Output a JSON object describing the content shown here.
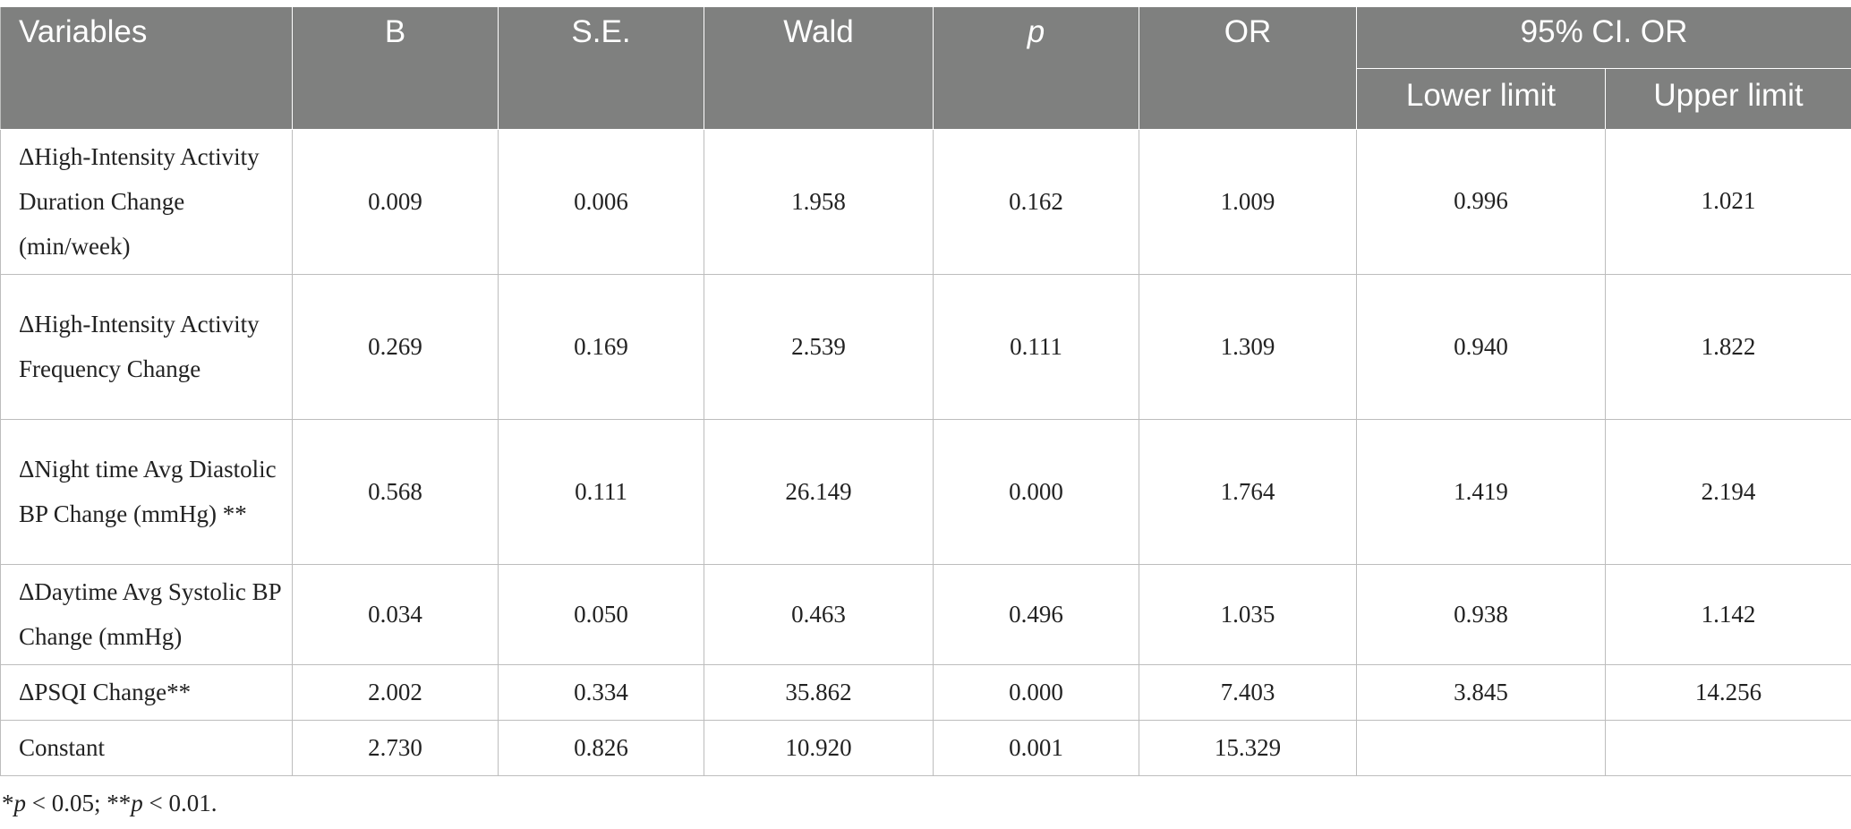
{
  "table": {
    "headers": {
      "variables": "Variables",
      "b": "B",
      "se": "S.E.",
      "wald": "Wald",
      "p": "p",
      "or": "OR",
      "ci": "95% CI. OR",
      "lower": "Lower limit",
      "upper": "Upper limit"
    },
    "rows": [
      {
        "label": "ΔHigh-Intensity Activity Duration Change (min/week)",
        "b": "0.009",
        "se": "0.006",
        "wald": "1.958",
        "p": "0.162",
        "or": "1.009",
        "lower": "0.996",
        "upper": "1.021"
      },
      {
        "label": "ΔHigh-Intensity Activity Frequency Change",
        "b": "0.269",
        "se": "0.169",
        "wald": "2.539",
        "p": "0.111",
        "or": "1.309",
        "lower": "0.940",
        "upper": "1.822"
      },
      {
        "label": "ΔNight time Avg Diastolic BP Change (mmHg) **",
        "b": "0.568",
        "se": "0.111",
        "wald": "26.149",
        "p": "0.000",
        "or": "1.764",
        "lower": "1.419",
        "upper": "2.194"
      },
      {
        "label": "ΔDaytime Avg Systolic BP Change (mmHg)",
        "b": "0.034",
        "se": "0.050",
        "wald": "0.463",
        "p": "0.496",
        "or": "1.035",
        "lower": "0.938",
        "upper": "1.142"
      },
      {
        "label": "ΔPSQI Change**",
        "b": "2.002",
        "se": "0.334",
        "wald": "35.862",
        "p": "0.000",
        "or": "7.403",
        "lower": "3.845",
        "upper": "14.256"
      },
      {
        "label": "Constant",
        "b": "2.730",
        "se": "0.826",
        "wald": "10.920",
        "p": "0.001",
        "or": "15.329",
        "lower": "",
        "upper": ""
      }
    ]
  },
  "footnote": {
    "star1": "*",
    "p1": "p",
    "t1": " < 0.05; **",
    "p2": "p",
    "t2": " < 0.01."
  }
}
